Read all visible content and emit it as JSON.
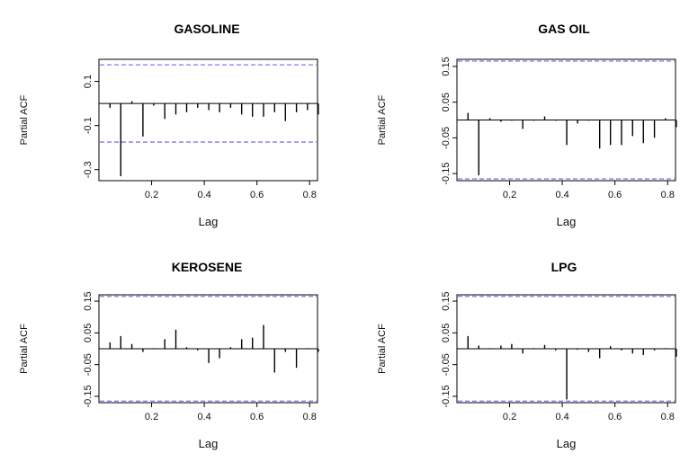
{
  "chart_data": [
    {
      "type": "bar",
      "title": "GASOLINE",
      "xlabel": "Lag",
      "ylabel": "Partial ACF",
      "xlim": [
        0,
        0.83
      ],
      "ylim": [
        -0.35,
        0.2
      ],
      "xticks": [
        "0.2",
        "0.4",
        "0.6",
        "0.8"
      ],
      "yticks": [
        "0.1",
        "-0.1",
        "-0.3"
      ],
      "conf_limit": 0.175,
      "x": [
        0.042,
        0.083,
        0.125,
        0.167,
        0.208,
        0.25,
        0.292,
        0.333,
        0.375,
        0.417,
        0.458,
        0.5,
        0.542,
        0.583,
        0.625,
        0.667,
        0.708,
        0.75,
        0.792,
        0.833
      ],
      "values": [
        -0.02,
        -0.33,
        0.01,
        -0.15,
        -0.01,
        -0.07,
        -0.05,
        -0.04,
        -0.02,
        -0.03,
        -0.04,
        -0.02,
        -0.05,
        -0.06,
        -0.06,
        -0.04,
        -0.08,
        -0.04,
        -0.03,
        -0.05
      ]
    },
    {
      "type": "bar",
      "title": "GAS OIL",
      "xlabel": "Lag",
      "ylabel": "Partial ACF",
      "xlim": [
        0,
        0.83
      ],
      "ylim": [
        -0.17,
        0.17
      ],
      "xticks": [
        "0.2",
        "0.4",
        "0.6",
        "0.8"
      ],
      "yticks": [
        "0.15",
        "0.05",
        "-0.05",
        "-0.15"
      ],
      "conf_limit": 0.165,
      "x": [
        0.042,
        0.083,
        0.125,
        0.167,
        0.208,
        0.25,
        0.292,
        0.333,
        0.375,
        0.417,
        0.458,
        0.5,
        0.542,
        0.583,
        0.625,
        0.667,
        0.708,
        0.75,
        0.792,
        0.833
      ],
      "values": [
        0.02,
        -0.155,
        0.005,
        -0.005,
        -0.002,
        -0.025,
        -0.002,
        0.01,
        -0.002,
        -0.07,
        -0.01,
        -0.002,
        -0.08,
        -0.07,
        -0.07,
        -0.045,
        -0.065,
        -0.05,
        0.005,
        -0.02
      ]
    },
    {
      "type": "bar",
      "title": "KEROSENE",
      "xlabel": "Lag",
      "ylabel": "Partial ACF",
      "xlim": [
        0,
        0.83
      ],
      "ylim": [
        -0.17,
        0.17
      ],
      "xticks": [
        "0.2",
        "0.4",
        "0.6",
        "0.8"
      ],
      "yticks": [
        "0.15",
        "0.05",
        "-0.05",
        "-0.15"
      ],
      "conf_limit": 0.165,
      "x": [
        0.042,
        0.083,
        0.125,
        0.167,
        0.208,
        0.25,
        0.292,
        0.333,
        0.375,
        0.417,
        0.458,
        0.5,
        0.542,
        0.583,
        0.625,
        0.667,
        0.708,
        0.75,
        0.792,
        0.833
      ],
      "values": [
        0.02,
        0.04,
        0.015,
        -0.01,
        0.002,
        0.03,
        0.06,
        0.005,
        -0.005,
        -0.045,
        -0.03,
        0.005,
        0.03,
        0.035,
        0.075,
        -0.075,
        -0.01,
        -0.06,
        0.002,
        -0.01
      ]
    },
    {
      "type": "bar",
      "title": "LPG",
      "xlabel": "Lag",
      "ylabel": "Partial ACF",
      "xlim": [
        0,
        0.83
      ],
      "ylim": [
        -0.17,
        0.17
      ],
      "xticks": [
        "0.2",
        "0.4",
        "0.6",
        "0.8"
      ],
      "yticks": [
        "0.15",
        "0.05",
        "-0.05",
        "-0.15"
      ],
      "conf_limit": 0.165,
      "x": [
        0.042,
        0.083,
        0.125,
        0.167,
        0.208,
        0.25,
        0.292,
        0.333,
        0.375,
        0.417,
        0.458,
        0.5,
        0.542,
        0.583,
        0.625,
        0.667,
        0.708,
        0.75,
        0.792,
        0.833
      ],
      "values": [
        0.04,
        0.01,
        0.002,
        0.01,
        0.015,
        -0.015,
        0.002,
        0.012,
        -0.005,
        -0.16,
        -0.003,
        -0.01,
        -0.03,
        0.008,
        -0.005,
        -0.015,
        -0.02,
        -0.005,
        0.002,
        -0.025
      ]
    }
  ],
  "colors": {
    "bars": "#000000",
    "conf_line": "#7b7bef",
    "axis": "#000000"
  }
}
